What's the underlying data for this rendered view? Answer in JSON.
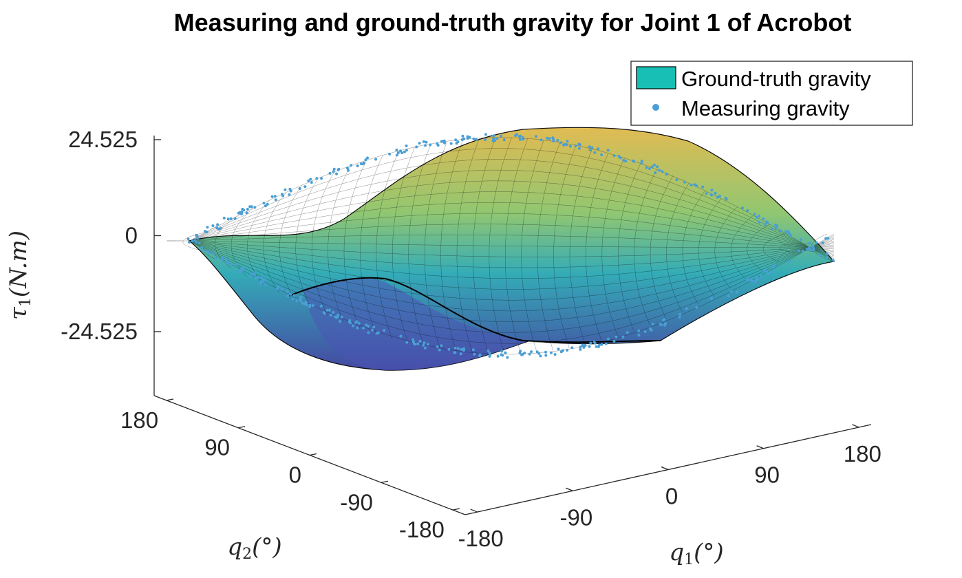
{
  "chart_data": {
    "type": "surface3d",
    "title": "Measuring and ground-truth gravity for Joint 1 of Acrobot",
    "xlabel": "q_1(°)",
    "ylabel": "q_2(°)",
    "zlabel": "τ_1(N.m)",
    "x_ticks": [
      "-180",
      "-90",
      "0",
      "90",
      "180"
    ],
    "y_ticks": [
      "-180",
      "-90",
      "0",
      "90",
      "180"
    ],
    "z_ticks": [
      "-24.525",
      "0",
      "24.525"
    ],
    "x_range": [
      -180,
      180
    ],
    "y_range": [
      -180,
      180
    ],
    "z_range": [
      -24.525,
      24.525
    ],
    "grid": false,
    "legend_position": "top-right",
    "series": [
      {
        "name": "Ground-truth gravity",
        "kind": "surface",
        "color": "#17bfb4"
      },
      {
        "name": "Measuring gravity",
        "kind": "scatter",
        "color": "#4a9fd4"
      }
    ]
  },
  "label_parts": {
    "x_main": "q",
    "x_sub": "1",
    "x_rest": "(°)",
    "y_main": "q",
    "y_sub": "2",
    "y_rest": "(°)",
    "z_main": "τ",
    "z_sub": "1",
    "z_rest": "(N.m)"
  }
}
